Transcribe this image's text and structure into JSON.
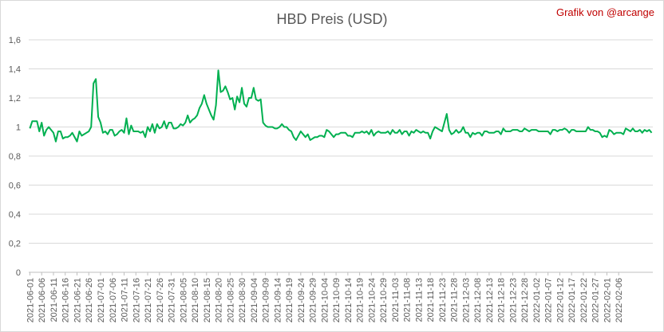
{
  "credit": "Grafik von @arcange",
  "chart_data": {
    "type": "line",
    "title": "HBD Preis (USD)",
    "xlabel": "",
    "ylabel": "",
    "ylim": [
      0,
      1.6
    ],
    "yticks": [
      "0",
      "0,2",
      "0,4",
      "0,6",
      "0,8",
      "1",
      "1,2",
      "1,4",
      "1,6"
    ],
    "grid": "horizontal",
    "legend": "none",
    "line_color": "#00b050",
    "xtick_labels": [
      "2021-06-01",
      "2021-06-06",
      "2021-06-11",
      "2021-06-16",
      "2021-06-21",
      "2021-06-26",
      "2021-07-01",
      "2021-07-06",
      "2021-07-11",
      "2021-07-16",
      "2021-07-21",
      "2021-07-26",
      "2021-07-31",
      "2021-08-05",
      "2021-08-10",
      "2021-08-15",
      "2021-08-20",
      "2021-08-25",
      "2021-08-30",
      "2021-09-04",
      "2021-09-09",
      "2021-09-14",
      "2021-09-19",
      "2021-09-24",
      "2021-09-29",
      "2021-10-04",
      "2021-10-09",
      "2021-10-14",
      "2021-10-19",
      "2021-10-24",
      "2021-10-29",
      "2021-11-03",
      "2021-11-08",
      "2021-11-13",
      "2021-11-18",
      "2021-11-23",
      "2021-11-28",
      "2021-12-03",
      "2021-12-08",
      "2021-12-13",
      "2021-12-18",
      "2021-12-23",
      "2021-12-28",
      "2022-01-02",
      "2022-01-07",
      "2022-01-12",
      "2022-01-17",
      "2022-01-22",
      "2022-01-27",
      "2022-02-01",
      "2022-02-06"
    ],
    "series": [
      {
        "start_date": "2021-06-01",
        "values": [
          0.99,
          1.04,
          1.04,
          1.04,
          0.97,
          1.03,
          0.94,
          0.98,
          1.0,
          0.98,
          0.96,
          0.9,
          0.97,
          0.97,
          0.92,
          0.93,
          0.93,
          0.94,
          0.96,
          0.93,
          0.9,
          0.97,
          0.94,
          0.95,
          0.96,
          0.97,
          1.0,
          1.3,
          1.33,
          1.07,
          1.03,
          0.96,
          0.97,
          0.95,
          0.98,
          0.98,
          0.94,
          0.95,
          0.97,
          0.98,
          0.96,
          1.06,
          0.95,
          1.01,
          0.97,
          0.97,
          0.97,
          0.96,
          0.97,
          0.93,
          1.0,
          0.97,
          1.02,
          0.96,
          1.02,
          0.99,
          1.0,
          1.04,
          0.99,
          1.03,
          1.03,
          0.99,
          0.99,
          1.0,
          1.02,
          1.01,
          1.03,
          1.08,
          1.03,
          1.05,
          1.06,
          1.08,
          1.13,
          1.16,
          1.22,
          1.16,
          1.12,
          1.08,
          1.05,
          1.15,
          1.39,
          1.24,
          1.25,
          1.28,
          1.24,
          1.19,
          1.2,
          1.12,
          1.21,
          1.17,
          1.27,
          1.16,
          1.14,
          1.2,
          1.2,
          1.27,
          1.19,
          1.18,
          1.19,
          1.03,
          1.01,
          1.0,
          1.0,
          1.0,
          0.99,
          0.99,
          1.0,
          1.02,
          1.0,
          1.0,
          0.98,
          0.97,
          0.93,
          0.91,
          0.94,
          0.97,
          0.95,
          0.93,
          0.95,
          0.91,
          0.92,
          0.93,
          0.93,
          0.94,
          0.94,
          0.93,
          0.98,
          0.97,
          0.95,
          0.93,
          0.95,
          0.95,
          0.96,
          0.96,
          0.96,
          0.94,
          0.94,
          0.93,
          0.96,
          0.96,
          0.96,
          0.97,
          0.96,
          0.97,
          0.95,
          0.98,
          0.94,
          0.96,
          0.97,
          0.96,
          0.96,
          0.96,
          0.97,
          0.95,
          0.98,
          0.96,
          0.96,
          0.98,
          0.95,
          0.97,
          0.97,
          0.94,
          0.97,
          0.96,
          0.98,
          0.97,
          0.96,
          0.97,
          0.96,
          0.96,
          0.92,
          0.97,
          1.0,
          0.99,
          0.98,
          0.97,
          1.03,
          1.09,
          0.98,
          0.95,
          0.96,
          0.98,
          0.96,
          0.97,
          1.0,
          0.96,
          0.96,
          0.93,
          0.96,
          0.95,
          0.96,
          0.96,
          0.94,
          0.97,
          0.97,
          0.96,
          0.96,
          0.96,
          0.97,
          0.97,
          0.95,
          0.99,
          0.97,
          0.97,
          0.97,
          0.98,
          0.98,
          0.98,
          0.97,
          0.97,
          0.99,
          0.98,
          0.97,
          0.98,
          0.98,
          0.98,
          0.97,
          0.97,
          0.97,
          0.97,
          0.97,
          0.95,
          0.98,
          0.98,
          0.97,
          0.98,
          0.98,
          0.99,
          0.98,
          0.96,
          0.98,
          0.98,
          0.97,
          0.97,
          0.97,
          0.97,
          0.97,
          1.0,
          0.98,
          0.98,
          0.97,
          0.97,
          0.96,
          0.93,
          0.94,
          0.93,
          0.98,
          0.97,
          0.95,
          0.96,
          0.96,
          0.96,
          0.95,
          0.99,
          0.98,
          0.97,
          0.99,
          0.97,
          0.97,
          0.98,
          0.96,
          0.98,
          0.97,
          0.98,
          0.96
        ]
      }
    ]
  }
}
